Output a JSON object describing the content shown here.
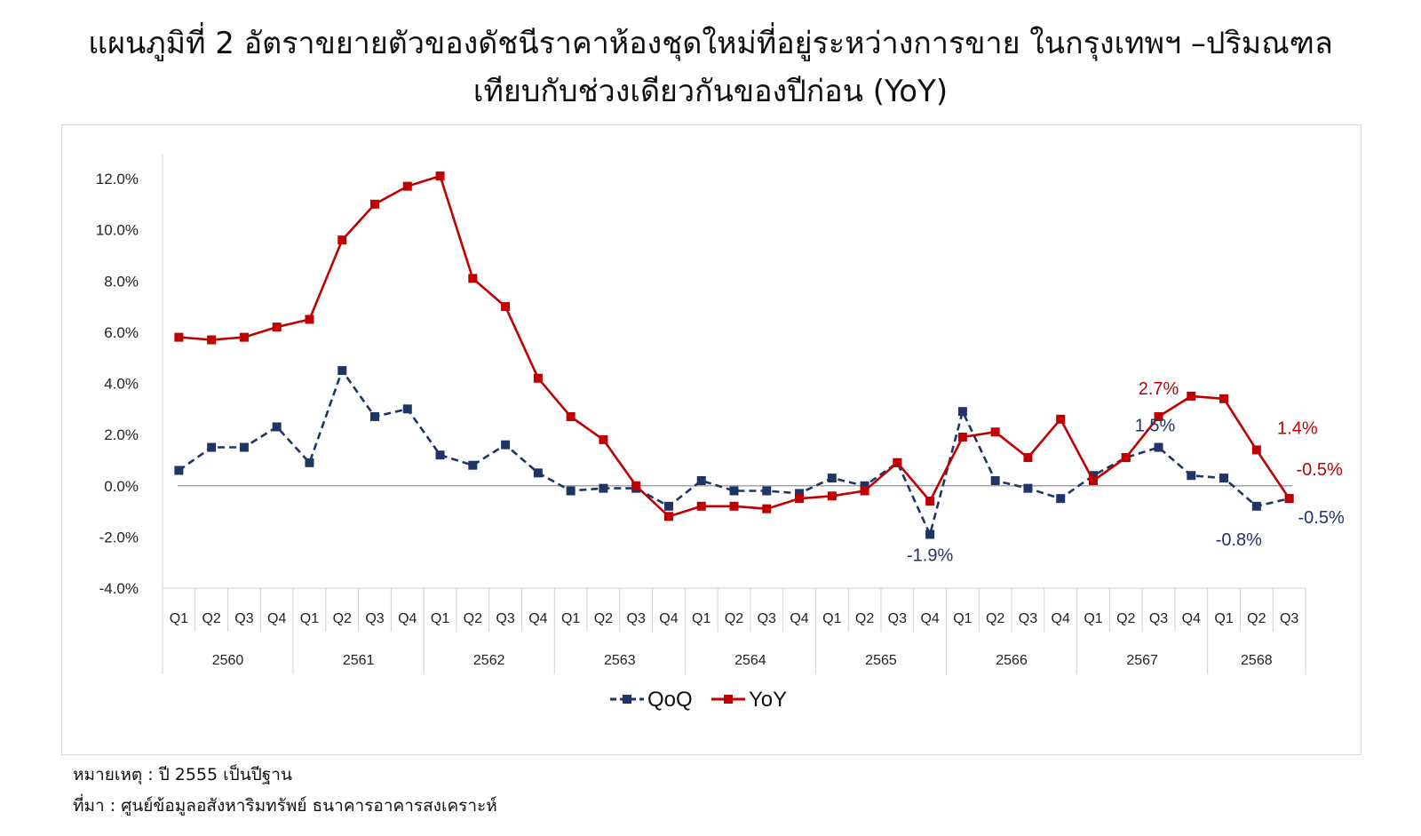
{
  "title": {
    "line1": "แผนภูมิที่ 2 อัตราขยายตัวของดัชนีราคาห้องชุดใหม่ที่อยู่ระหว่างการขาย ในกรุงเทพฯ –ปริมณฑล",
    "line2": "เทียบกับช่วงเดียวกันของปีก่อน (YoY)"
  },
  "notes": {
    "remark": "หมายเหตุ : ปี 2555 เป็นปีฐาน",
    "source": "ที่มา : ศูนย์ข้อมูลอสังหาริมทรัพย์ ธนาคารอาคารสงเคราะห์"
  },
  "chart_data": {
    "type": "line",
    "ylim": [
      -4,
      12
    ],
    "y_ticks": [
      12,
      10,
      8,
      6,
      4,
      2,
      0,
      -2,
      -4
    ],
    "y_tick_labels": [
      "12.0%",
      "10.0%",
      "8.0%",
      "6.0%",
      "4.0%",
      "2.0%",
      "0.0%",
      "-2.0%",
      "-4.0%"
    ],
    "grid": false,
    "legend_position": "bottom-center",
    "quarters": [
      "Q1",
      "Q2",
      "Q3",
      "Q4",
      "Q1",
      "Q2",
      "Q3",
      "Q4",
      "Q1",
      "Q2",
      "Q3",
      "Q4",
      "Q1",
      "Q2",
      "Q3",
      "Q4",
      "Q1",
      "Q2",
      "Q3",
      "Q4",
      "Q1",
      "Q2",
      "Q3",
      "Q4",
      "Q1",
      "Q2",
      "Q3",
      "Q4",
      "Q1",
      "Q2",
      "Q3",
      "Q4",
      "Q1",
      "Q2",
      "Q3"
    ],
    "years": [
      {
        "label": "2560",
        "count": 4
      },
      {
        "label": "2561",
        "count": 4
      },
      {
        "label": "2562",
        "count": 4
      },
      {
        "label": "2563",
        "count": 4
      },
      {
        "label": "2564",
        "count": 4
      },
      {
        "label": "2565",
        "count": 4
      },
      {
        "label": "2566",
        "count": 4
      },
      {
        "label": "2567",
        "count": 4
      },
      {
        "label": "2568",
        "count": 3
      }
    ],
    "series": [
      {
        "name": "QoQ",
        "color": "#1f3566",
        "dashed": true,
        "values": [
          0.6,
          1.5,
          1.5,
          2.3,
          0.9,
          4.5,
          2.7,
          3.0,
          1.2,
          0.8,
          1.6,
          0.5,
          -0.2,
          -0.1,
          -0.1,
          -0.8,
          0.2,
          -0.2,
          -0.2,
          -0.3,
          0.3,
          0.0,
          0.9,
          -1.9,
          2.9,
          0.2,
          -0.1,
          -0.5,
          0.4,
          1.1,
          1.5,
          0.4,
          0.3,
          -0.8,
          -0.5
        ]
      },
      {
        "name": "YoY",
        "color": "#c00000",
        "dashed": false,
        "values": [
          5.8,
          5.7,
          5.8,
          6.2,
          6.5,
          9.6,
          11.0,
          11.7,
          12.1,
          8.1,
          7.0,
          4.2,
          2.7,
          1.8,
          0.0,
          -1.2,
          -0.8,
          -0.8,
          -0.9,
          -0.5,
          -0.4,
          -0.2,
          0.9,
          -0.6,
          1.9,
          2.1,
          1.1,
          2.6,
          0.2,
          1.1,
          2.7,
          3.5,
          3.4,
          1.4,
          -0.5
        ]
      }
    ],
    "annotations": [
      {
        "series": "QoQ",
        "index": 23,
        "text": "-1.9%",
        "color": "#1f3566"
      },
      {
        "series": "QoQ",
        "index": 30,
        "text": "1.5%",
        "color": "#1f3566"
      },
      {
        "series": "QoQ",
        "index": 33,
        "text": "-0.8%",
        "color": "#1f3566"
      },
      {
        "series": "QoQ",
        "index": 34,
        "text": "-0.5%",
        "color": "#1f3566"
      },
      {
        "series": "YoY",
        "index": 30,
        "text": "2.7%",
        "color": "#c00000"
      },
      {
        "series": "YoY",
        "index": 33,
        "text": "1.4%",
        "color": "#c00000"
      },
      {
        "series": "YoY",
        "index": 34,
        "text": "-0.5%",
        "color": "#c00000"
      }
    ]
  }
}
